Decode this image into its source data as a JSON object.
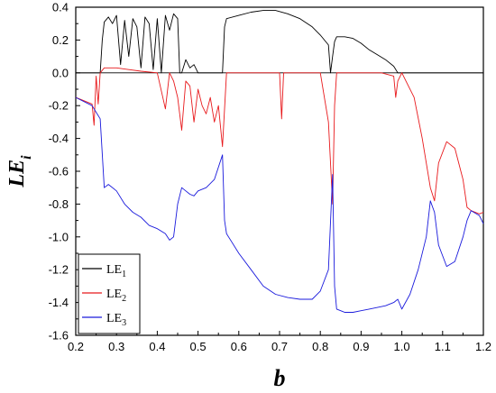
{
  "chart_data": {
    "type": "line",
    "xlabel": "b",
    "ylabel": "LE",
    "ylabel_subscript": "i",
    "xlim": [
      0.2,
      1.2
    ],
    "ylim": [
      -1.6,
      0.4
    ],
    "x_ticks": [
      "0.2",
      "0.3",
      "0.4",
      "0.5",
      "0.6",
      "0.7",
      "0.8",
      "0.9",
      "1.0",
      "1.1",
      "1.2"
    ],
    "y_ticks": [
      "0.4",
      "0.2",
      "0.0",
      "-0.2",
      "-0.4",
      "-0.6",
      "-0.8",
      "-1.0",
      "-1.2",
      "-1.4",
      "-1.6"
    ],
    "grid": false,
    "legend_position": "bottom-left",
    "series": [
      {
        "name": "LE",
        "subscript": "1",
        "color": "#000000",
        "x": [
          0.2,
          0.26,
          0.265,
          0.27,
          0.28,
          0.29,
          0.3,
          0.31,
          0.32,
          0.33,
          0.34,
          0.35,
          0.36,
          0.37,
          0.38,
          0.39,
          0.4,
          0.41,
          0.42,
          0.43,
          0.44,
          0.45,
          0.455,
          0.46,
          0.47,
          0.48,
          0.49,
          0.5,
          0.51,
          0.52,
          0.53,
          0.54,
          0.55,
          0.56,
          0.565,
          0.57,
          0.6,
          0.63,
          0.66,
          0.69,
          0.72,
          0.75,
          0.78,
          0.8,
          0.82,
          0.825,
          0.83,
          0.835,
          0.84,
          0.86,
          0.88,
          0.9,
          0.92,
          0.94,
          0.96,
          0.98,
          0.99,
          1.0,
          1.2
        ],
        "y": [
          0.0,
          0.0,
          0.2,
          0.31,
          0.34,
          0.3,
          0.35,
          0.05,
          0.32,
          0.1,
          0.33,
          0.28,
          0.03,
          0.34,
          0.3,
          0.02,
          0.33,
          0.0,
          0.35,
          0.26,
          0.36,
          0.33,
          0.0,
          0.0,
          0.08,
          0.03,
          0.05,
          0.0,
          0.0,
          0.0,
          0.0,
          0.0,
          0.0,
          0.0,
          0.28,
          0.33,
          0.35,
          0.37,
          0.38,
          0.38,
          0.36,
          0.33,
          0.28,
          0.23,
          0.17,
          0.0,
          0.1,
          0.19,
          0.22,
          0.22,
          0.21,
          0.18,
          0.14,
          0.11,
          0.08,
          0.04,
          0.0,
          0.0,
          0.0
        ]
      },
      {
        "name": "LE",
        "subscript": "2",
        "color": "#e8191c",
        "x": [
          0.2,
          0.24,
          0.245,
          0.25,
          0.255,
          0.26,
          0.27,
          0.3,
          0.33,
          0.36,
          0.4,
          0.42,
          0.43,
          0.44,
          0.45,
          0.46,
          0.47,
          0.48,
          0.49,
          0.5,
          0.51,
          0.52,
          0.53,
          0.54,
          0.55,
          0.56,
          0.57,
          0.6,
          0.7,
          0.705,
          0.71,
          0.8,
          0.82,
          0.83,
          0.835,
          0.84,
          0.9,
          0.95,
          0.98,
          0.985,
          0.99,
          1.0,
          1.03,
          1.05,
          1.07,
          1.08,
          1.09,
          1.11,
          1.13,
          1.15,
          1.16,
          1.17,
          1.19,
          1.2
        ],
        "y": [
          -0.15,
          -0.19,
          -0.32,
          -0.02,
          -0.19,
          0.0,
          0.03,
          0.03,
          0.02,
          0.01,
          0.0,
          -0.22,
          0.0,
          -0.05,
          -0.15,
          -0.35,
          -0.05,
          -0.08,
          -0.3,
          -0.1,
          -0.2,
          -0.25,
          -0.15,
          -0.3,
          -0.2,
          -0.45,
          0.0,
          0.0,
          0.0,
          -0.28,
          0.0,
          0.0,
          -0.3,
          -0.8,
          -0.2,
          0.0,
          0.0,
          0.0,
          -0.02,
          -0.15,
          -0.05,
          0.0,
          -0.15,
          -0.4,
          -0.7,
          -0.78,
          -0.55,
          -0.42,
          -0.46,
          -0.65,
          -0.82,
          -0.84,
          -0.86,
          -0.85
        ]
      },
      {
        "name": "LE",
        "subscript": "3",
        "color": "#1a1adc",
        "x": [
          0.2,
          0.24,
          0.26,
          0.27,
          0.28,
          0.3,
          0.32,
          0.34,
          0.36,
          0.38,
          0.4,
          0.42,
          0.43,
          0.44,
          0.45,
          0.46,
          0.47,
          0.48,
          0.49,
          0.5,
          0.52,
          0.54,
          0.56,
          0.565,
          0.57,
          0.6,
          0.63,
          0.66,
          0.69,
          0.72,
          0.75,
          0.78,
          0.8,
          0.82,
          0.83,
          0.835,
          0.84,
          0.86,
          0.88,
          0.9,
          0.92,
          0.94,
          0.96,
          0.98,
          0.99,
          1.0,
          1.02,
          1.04,
          1.06,
          1.07,
          1.08,
          1.09,
          1.11,
          1.13,
          1.15,
          1.16,
          1.17,
          1.19,
          1.2
        ],
        "y": [
          -0.15,
          -0.2,
          -0.28,
          -0.7,
          -0.68,
          -0.72,
          -0.8,
          -0.85,
          -0.88,
          -0.93,
          -0.95,
          -0.98,
          -1.02,
          -1.0,
          -0.8,
          -0.7,
          -0.72,
          -0.74,
          -0.75,
          -0.72,
          -0.7,
          -0.65,
          -0.5,
          -0.9,
          -0.98,
          -1.1,
          -1.2,
          -1.3,
          -1.35,
          -1.37,
          -1.38,
          -1.38,
          -1.33,
          -1.2,
          -0.62,
          -1.3,
          -1.44,
          -1.46,
          -1.46,
          -1.45,
          -1.44,
          -1.43,
          -1.42,
          -1.4,
          -1.38,
          -1.44,
          -1.35,
          -1.2,
          -1.0,
          -0.78,
          -0.85,
          -1.05,
          -1.18,
          -1.15,
          -1.0,
          -0.9,
          -0.84,
          -0.87,
          -0.92
        ]
      }
    ]
  }
}
